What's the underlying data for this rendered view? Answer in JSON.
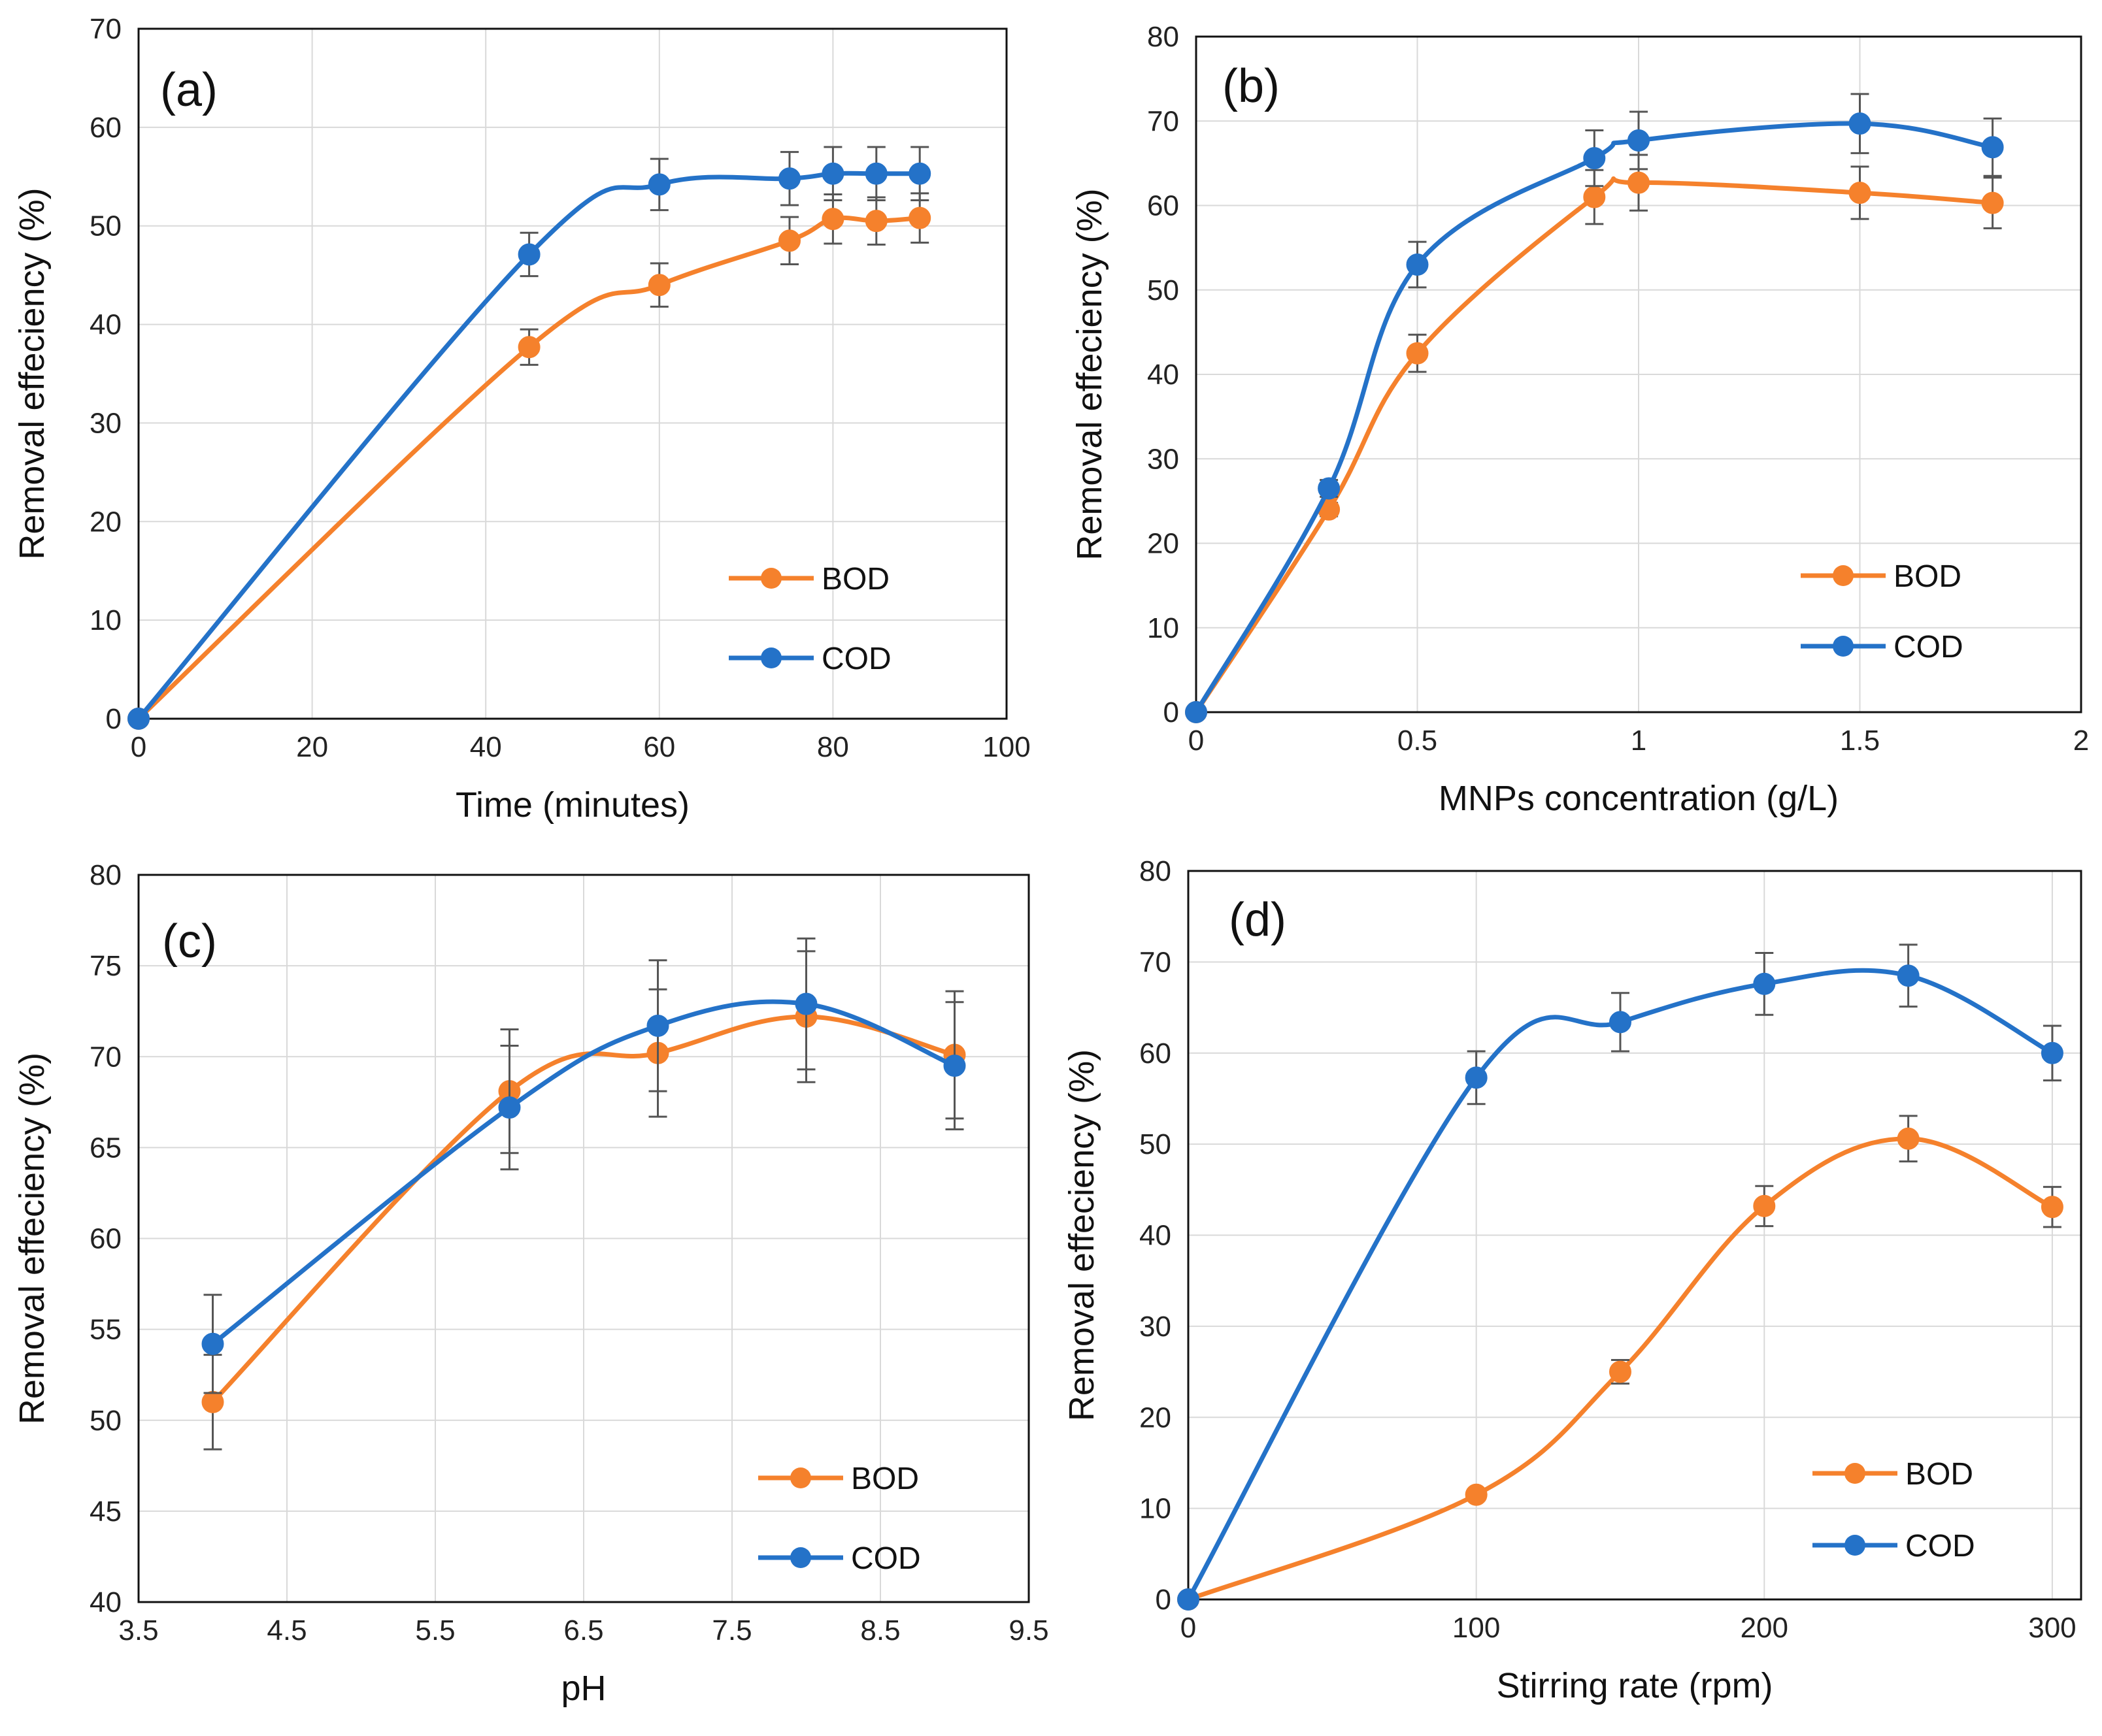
{
  "colors": {
    "BOD": "#F5812C",
    "COD": "#2472C8",
    "grid": "#d9d9d9",
    "errorbar": "#555555"
  },
  "chart_data": [
    {
      "id": "a",
      "type": "line",
      "panel_label": "(a)",
      "xlabel": "Time (minutes)",
      "ylabel": "Removal effeciency (%)",
      "xlim": [
        0,
        100
      ],
      "ylim": [
        0,
        70
      ],
      "xticks": [
        0,
        20,
        40,
        60,
        80,
        100
      ],
      "xtick_labels": [
        "0",
        "20",
        "40",
        "60",
        "80",
        "100"
      ],
      "yticks": [
        0,
        10,
        20,
        30,
        40,
        50,
        60,
        70
      ],
      "ytick_labels": [
        "0",
        "10",
        "20",
        "30",
        "40",
        "50",
        "60",
        "70"
      ],
      "legend": "right",
      "series": [
        {
          "name": "BOD",
          "x": [
            0,
            45,
            60,
            75,
            80,
            85,
            90
          ],
          "y": [
            0,
            37.7,
            44,
            48.5,
            50.7,
            50.5,
            50.8
          ],
          "err": [
            0,
            1.8,
            2.2,
            2.4,
            2.5,
            2.4,
            2.5
          ]
        },
        {
          "name": "COD",
          "x": [
            0,
            45,
            60,
            75,
            80,
            85,
            90
          ],
          "y": [
            0,
            47.1,
            54.2,
            54.8,
            55.3,
            55.3,
            55.3
          ],
          "err": [
            0,
            2.2,
            2.6,
            2.7,
            2.7,
            2.7,
            2.7
          ]
        }
      ]
    },
    {
      "id": "b",
      "type": "line",
      "panel_label": "(b)",
      "xlabel": "MNPs concentration (g/L)",
      "ylabel": "Removal effeciency (%)",
      "xlim": [
        0,
        2
      ],
      "ylim": [
        0,
        80
      ],
      "xticks": [
        0,
        0.5,
        1,
        1.5,
        2
      ],
      "xtick_labels": [
        "0",
        "0.5",
        "1",
        "1.5",
        "2"
      ],
      "yticks": [
        0,
        10,
        20,
        30,
        40,
        50,
        60,
        70,
        80
      ],
      "ytick_labels": [
        "0",
        "10",
        "20",
        "30",
        "40",
        "50",
        "60",
        "70",
        "80"
      ],
      "legend": "right",
      "series": [
        {
          "name": "BOD",
          "x": [
            0,
            0.3,
            0.5,
            0.9,
            1.0,
            1.5,
            1.8
          ],
          "y": [
            0,
            24,
            42.5,
            61,
            62.7,
            61.5,
            60.3
          ],
          "err": [
            0,
            0.8,
            2.2,
            3.2,
            3.3,
            3.1,
            3
          ]
        },
        {
          "name": "COD",
          "x": [
            0,
            0.3,
            0.5,
            0.9,
            1.0,
            1.5,
            1.8
          ],
          "y": [
            0,
            26.5,
            53,
            65.6,
            67.7,
            69.7,
            66.9
          ],
          "err": [
            0,
            1,
            2.7,
            3.3,
            3.4,
            3.5,
            3.4
          ]
        }
      ]
    },
    {
      "id": "c",
      "type": "line",
      "panel_label": "(c)",
      "xlabel": "pH",
      "ylabel": "Removal effeciency (%)",
      "xlim": [
        3.5,
        9.5
      ],
      "ylim": [
        40,
        80
      ],
      "xticks": [
        3.5,
        4.5,
        5.5,
        6.5,
        7.5,
        8.5,
        9.5
      ],
      "xtick_labels": [
        "3.5",
        "4.5",
        "5.5",
        "6.5",
        "7.5",
        "8.5",
        "9.5"
      ],
      "yticks": [
        40,
        45,
        50,
        55,
        60,
        65,
        70,
        75,
        80
      ],
      "ytick_labels": [
        "40",
        "45",
        "50",
        "55",
        "60",
        "65",
        "70",
        "75",
        "80"
      ],
      "legend": "right",
      "series": [
        {
          "name": "BOD",
          "x": [
            4,
            6,
            7,
            8,
            9
          ],
          "y": [
            51,
            68.1,
            70.2,
            72.2,
            70.1
          ],
          "err": [
            2.6,
            3.4,
            3.5,
            3.6,
            3.5
          ]
        },
        {
          "name": "COD",
          "x": [
            4,
            6,
            7,
            8,
            9
          ],
          "y": [
            54.2,
            67.2,
            71.7,
            72.9,
            69.5
          ],
          "err": [
            2.7,
            3.4,
            3.6,
            3.6,
            3.5
          ]
        }
      ]
    },
    {
      "id": "d",
      "type": "line",
      "panel_label": "(d)",
      "xlabel": "Stirring rate (rpm)",
      "ylabel": "Removal effeciency (%)",
      "xlim": [
        0,
        310
      ],
      "ylim": [
        0,
        80
      ],
      "xticks": [
        0,
        100,
        200,
        300
      ],
      "xtick_labels": [
        "0",
        "100",
        "200",
        "300"
      ],
      "yticks": [
        0,
        10,
        20,
        30,
        40,
        50,
        60,
        70,
        80
      ],
      "ytick_labels": [
        "0",
        "10",
        "20",
        "30",
        "40",
        "50",
        "60",
        "70",
        "80"
      ],
      "legend": "right",
      "series": [
        {
          "name": "BOD",
          "x": [
            0,
            100,
            150,
            200,
            250,
            300
          ],
          "y": [
            0,
            11.5,
            25,
            43.2,
            50.6,
            43.1
          ],
          "err": [
            0,
            0.6,
            1.3,
            2.2,
            2.5,
            2.2
          ]
        },
        {
          "name": "COD",
          "x": [
            0,
            100,
            150,
            200,
            250,
            300
          ],
          "y": [
            0,
            57.3,
            63.4,
            67.6,
            68.5,
            60
          ],
          "err": [
            0,
            2.9,
            3.2,
            3.4,
            3.4,
            3
          ]
        }
      ]
    }
  ]
}
